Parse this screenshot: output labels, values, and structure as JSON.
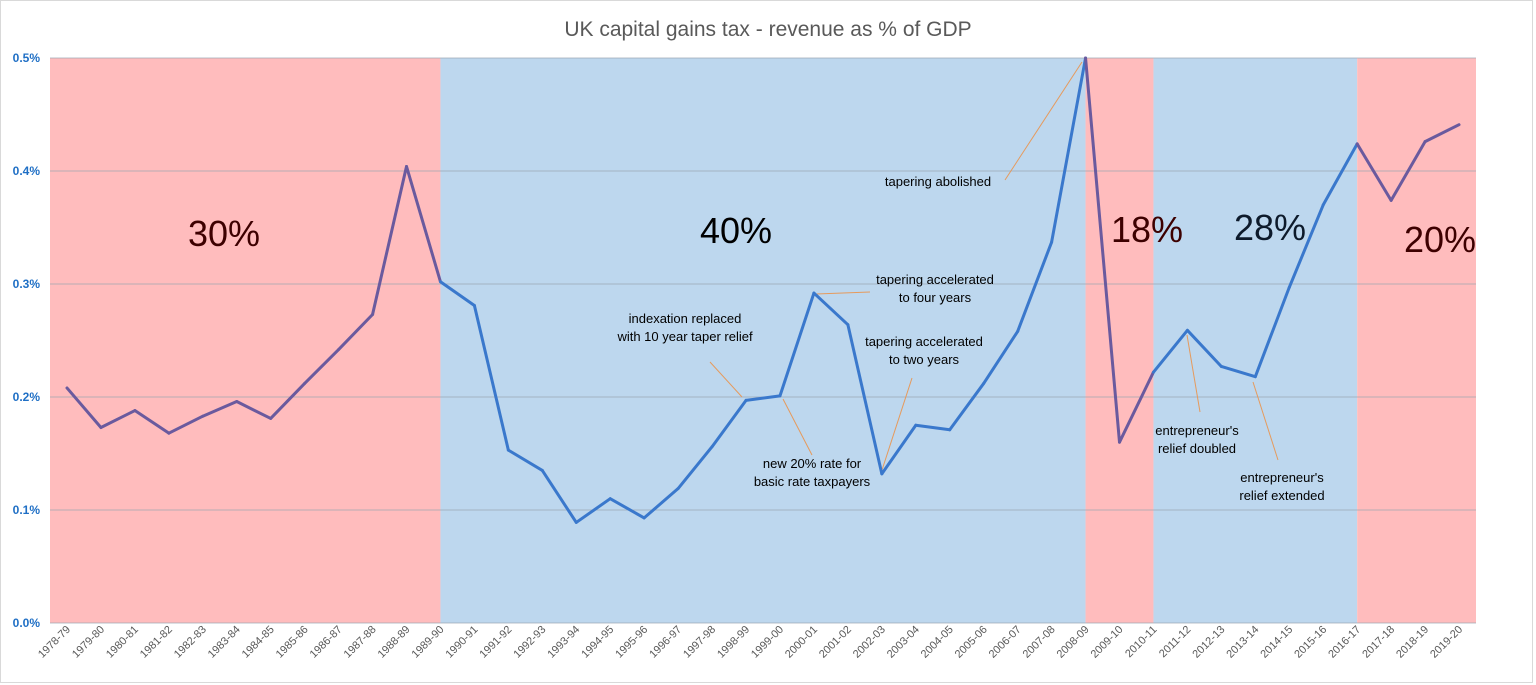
{
  "chart_data": {
    "type": "line",
    "title": "UK capital gains tax - revenue as % of GDP",
    "xlabel": "",
    "ylabel": "",
    "ylim": [
      0,
      0.5
    ],
    "yticks": [
      "0.0%",
      "0.1%",
      "0.2%",
      "0.3%",
      "0.4%",
      "0.5%"
    ],
    "ytick_values": [
      0,
      0.1,
      0.2,
      0.3,
      0.4,
      0.5
    ],
    "grid": true,
    "legend": "none",
    "categories": [
      "1978-79",
      "1979-80",
      "1980-81",
      "1981-82",
      "1982-83",
      "1983-84",
      "1984-85",
      "1985-86",
      "1986-87",
      "1987-88",
      "1988-89",
      "1989-90",
      "1990-91",
      "1991-92",
      "1992-93",
      "1993-94",
      "1994-95",
      "1995-96",
      "1996-97",
      "1997-98",
      "1998-99",
      "1999-00",
      "2000-01",
      "2001-02",
      "2002-03",
      "2003-04",
      "2004-05",
      "2005-06",
      "2006-07",
      "2007-08",
      "2008-09",
      "2009-10",
      "2010-11",
      "2011-12",
      "2012-13",
      "2013-14",
      "2014-15",
      "2015-16",
      "2016-17",
      "2017-18",
      "2018-19",
      "2019-20"
    ],
    "values": [
      0.208,
      0.173,
      0.188,
      0.168,
      0.183,
      0.196,
      0.181,
      0.212,
      0.242,
      0.273,
      0.404,
      0.302,
      0.281,
      0.153,
      0.135,
      0.089,
      0.11,
      0.093,
      0.119,
      0.156,
      0.197,
      0.201,
      0.292,
      0.264,
      0.132,
      0.175,
      0.171,
      0.212,
      0.258,
      0.337,
      0.5,
      0.16,
      0.222,
      0.259,
      0.227,
      0.218,
      0.297,
      0.37,
      0.424,
      0.374,
      0.426,
      0.441
    ],
    "rate_bands": [
      {
        "rate": "30%",
        "from": "1978-79",
        "to": "1989-90",
        "color": "#ffbcbd",
        "text_color": "#3d0000"
      },
      {
        "rate": "40%",
        "from": "1989-90",
        "to": "2008-09",
        "color": "#bdd7ee",
        "text_color": "#000000"
      },
      {
        "rate": "18%",
        "from": "2008-09",
        "to": "2010-11",
        "color": "#ffbcbd",
        "text_color": "#3d0000"
      },
      {
        "rate": "28%",
        "from": "2010-11",
        "to": "2016-17",
        "color": "#bdd7ee",
        "text_color": "#0d1a2b"
      },
      {
        "rate": "20%",
        "from": "2016-17",
        "to": "2019-20",
        "color": "#ffbcbd",
        "text_color": "#3d0000"
      }
    ],
    "line_colors": {
      "blue_band": "#3a78cc",
      "pink_band": "#6a5a9e"
    },
    "annotations": [
      {
        "lines": [
          "indexation replaced",
          "with 10 year taper relief"
        ],
        "at": "1998-99"
      },
      {
        "lines": [
          "new 20% rate for",
          "basic rate taxpayers"
        ],
        "at": "1999-00"
      },
      {
        "lines": [
          "tapering accelerated",
          "to four years"
        ],
        "at": "2000-01"
      },
      {
        "lines": [
          "tapering accelerated",
          "to two years"
        ],
        "at": "2002-03"
      },
      {
        "lines": [
          "tapering abolished"
        ],
        "at": "2008-09"
      },
      {
        "lines": [
          "entrepreneur's",
          "relief doubled"
        ],
        "at": "2011-12"
      },
      {
        "lines": [
          "entrepreneur's",
          "relief extended"
        ],
        "at": "2013-14"
      }
    ]
  }
}
